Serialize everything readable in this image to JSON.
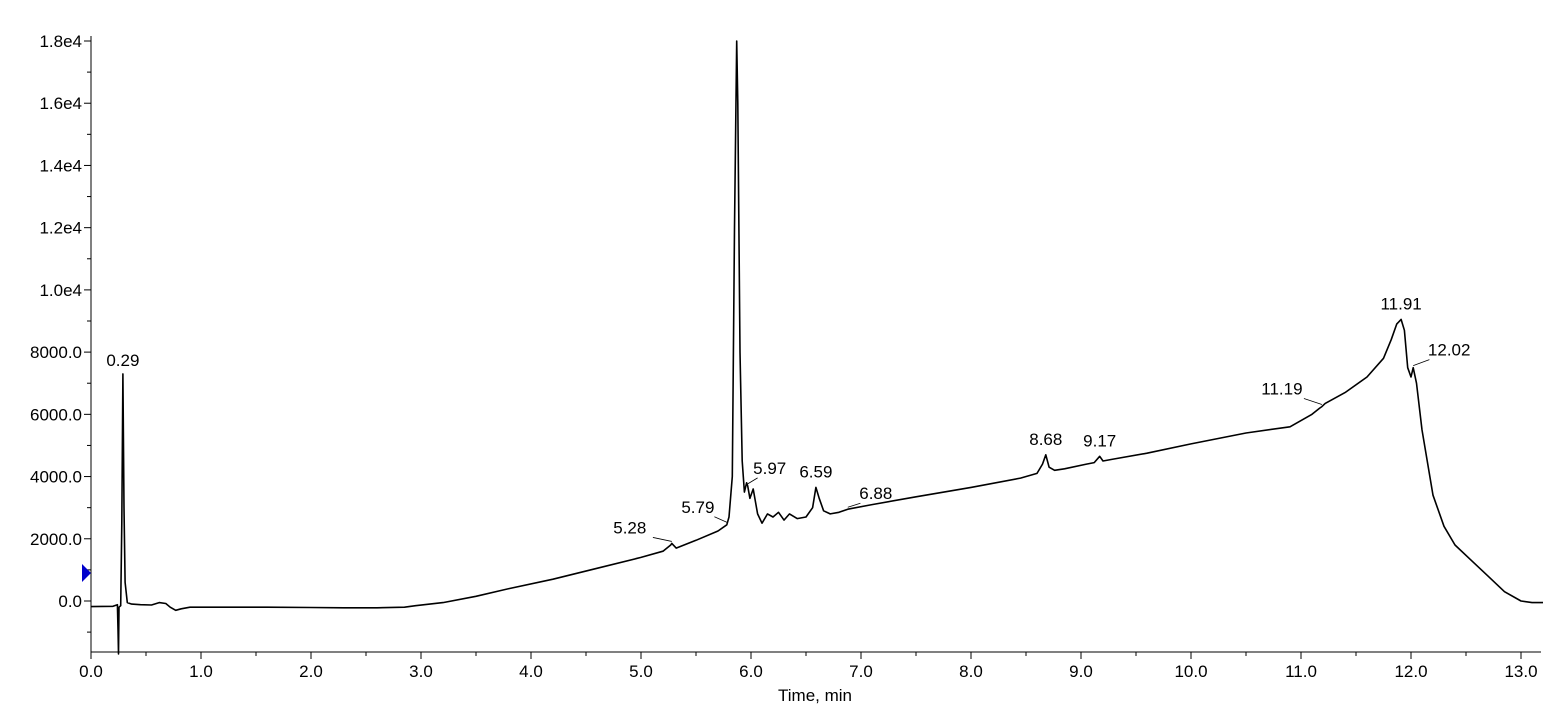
{
  "chart_data": {
    "type": "line",
    "title": "",
    "xlabel": "Time, min",
    "ylabel": "",
    "xlim": [
      0.0,
      13.2
    ],
    "ylim": [
      -1700,
      18000
    ],
    "grid": false,
    "legend": "none",
    "x_tick_labels": [
      "0.0",
      "1.0",
      "2.0",
      "3.0",
      "4.0",
      "5.0",
      "6.0",
      "7.0",
      "8.0",
      "9.0",
      "10.0",
      "11.0",
      "12.0",
      "13.0"
    ],
    "y_tick_labels": [
      "0.0",
      "2000.0",
      "4000.0",
      "6000.0",
      "8000.0",
      "1.0e4",
      "1.2e4",
      "1.4e4",
      "1.6e4",
      "1.8e4"
    ],
    "line_color": "#000000",
    "marker_color": "#0000cc",
    "peak_labels": [
      {
        "label": "0.29",
        "x": 0.29,
        "y": 7300
      },
      {
        "label": "5.28",
        "x": 5.28,
        "y": 1850
      },
      {
        "label": "5.79",
        "x": 5.79,
        "y": 2450
      },
      {
        "label": "5.97",
        "x": 5.97,
        "y": 3700
      },
      {
        "label": "6.59",
        "x": 6.59,
        "y": 3650
      },
      {
        "label": "6.88",
        "x": 6.88,
        "y": 2950
      },
      {
        "label": "8.68",
        "x": 8.68,
        "y": 4700
      },
      {
        "label": "9.17",
        "x": 9.17,
        "y": 4650
      },
      {
        "label": "11.19",
        "x": 11.19,
        "y": 6250
      },
      {
        "label": "11.91",
        "x": 11.91,
        "y": 9050
      },
      {
        "label": "12.02",
        "x": 12.02,
        "y": 7500
      }
    ],
    "series": [
      {
        "x": [
          0.0,
          0.2,
          0.24,
          0.245,
          0.25,
          0.255,
          0.27,
          0.28,
          0.29,
          0.3,
          0.31,
          0.33,
          0.37,
          0.45,
          0.55,
          0.62,
          0.68,
          0.72,
          0.77,
          0.82,
          0.9,
          1.2,
          1.6,
          2.0,
          2.3,
          2.6,
          2.85,
          2.95,
          3.2,
          3.5,
          3.8,
          4.2,
          4.6,
          5.0,
          5.2,
          5.27,
          5.28,
          5.32,
          5.5,
          5.7,
          5.78,
          5.8,
          5.83,
          5.85,
          5.87,
          5.88,
          5.9,
          5.92,
          5.94,
          5.96,
          5.97,
          5.99,
          6.02,
          6.06,
          6.1,
          6.15,
          6.2,
          6.25,
          6.3,
          6.35,
          6.42,
          6.5,
          6.56,
          6.59,
          6.62,
          6.66,
          6.72,
          6.8,
          6.88,
          7.1,
          7.5,
          8.0,
          8.45,
          8.6,
          8.65,
          8.68,
          8.71,
          8.76,
          8.85,
          9.05,
          9.12,
          9.17,
          9.2,
          9.28,
          9.6,
          10.0,
          10.5,
          10.9,
          11.1,
          11.17,
          11.19,
          11.22,
          11.4,
          11.6,
          11.75,
          11.82,
          11.87,
          11.91,
          11.94,
          11.97,
          12.0,
          12.02,
          12.05,
          12.1,
          12.2,
          12.3,
          12.4,
          12.55,
          12.7,
          12.85,
          13.0,
          13.1,
          13.2
        ],
        "y": [
          -180,
          -170,
          -120,
          -900,
          -1700,
          -200,
          -150,
          2500,
          7300,
          3000,
          600,
          -50,
          -100,
          -120,
          -130,
          -50,
          -80,
          -200,
          -300,
          -250,
          -200,
          -200,
          -200,
          -210,
          -220,
          -220,
          -200,
          -150,
          -50,
          150,
          400,
          700,
          1050,
          1400,
          1600,
          1800,
          1850,
          1700,
          1950,
          2250,
          2450,
          2700,
          4000,
          12000,
          18000,
          16000,
          8000,
          4500,
          3500,
          3800,
          3700,
          3300,
          3600,
          2800,
          2500,
          2800,
          2700,
          2850,
          2600,
          2800,
          2650,
          2700,
          3000,
          3650,
          3300,
          2900,
          2800,
          2850,
          2950,
          3100,
          3350,
          3650,
          3950,
          4100,
          4400,
          4700,
          4300,
          4200,
          4250,
          4400,
          4450,
          4650,
          4500,
          4550,
          4750,
          5050,
          5400,
          5600,
          6000,
          6200,
          6250,
          6350,
          6700,
          7200,
          7800,
          8400,
          8900,
          9050,
          8700,
          7500,
          7200,
          7500,
          7000,
          5500,
          3400,
          2400,
          1800,
          1300,
          800,
          300,
          0,
          -50,
          -50
        ]
      }
    ]
  }
}
